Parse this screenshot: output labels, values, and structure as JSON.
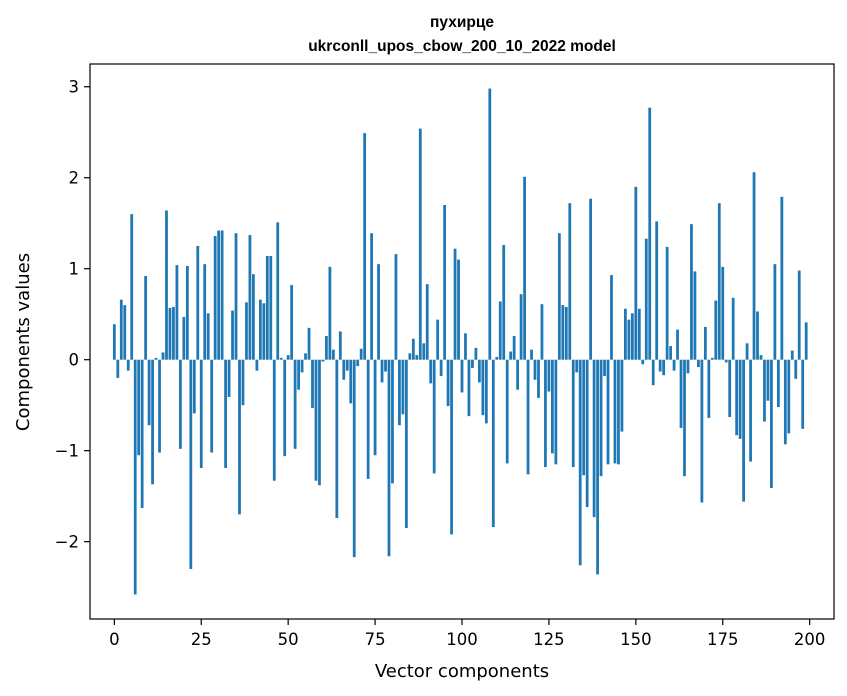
{
  "chart_data": {
    "type": "bar",
    "title": [
      "пухирце",
      "ukrconll_upos_cbow_200_10_2022 model"
    ],
    "xlabel": "Vector components",
    "ylabel": "Components values",
    "xlim": [
      -7,
      207
    ],
    "ylim": [
      -2.85,
      3.25
    ],
    "x_ticks": [
      0,
      25,
      50,
      75,
      100,
      125,
      150,
      175,
      200
    ],
    "x_tick_labels": [
      "0",
      "25",
      "50",
      "75",
      "100",
      "125",
      "150",
      "175",
      "200"
    ],
    "y_ticks": [
      -2,
      -1,
      0,
      1,
      2,
      3
    ],
    "y_tick_labels": [
      "−2",
      "−1",
      "0",
      "1",
      "2",
      "3"
    ],
    "bar_color": "#1f77b4",
    "grid": false,
    "x": [
      0,
      1,
      2,
      3,
      4,
      5,
      6,
      7,
      8,
      9,
      10,
      11,
      12,
      13,
      14,
      15,
      16,
      17,
      18,
      19,
      20,
      21,
      22,
      23,
      24,
      25,
      26,
      27,
      28,
      29,
      30,
      31,
      32,
      33,
      34,
      35,
      36,
      37,
      38,
      39,
      40,
      41,
      42,
      43,
      44,
      45,
      46,
      47,
      48,
      49,
      50,
      51,
      52,
      53,
      54,
      55,
      56,
      57,
      58,
      59,
      60,
      61,
      62,
      63,
      64,
      65,
      66,
      67,
      68,
      69,
      70,
      71,
      72,
      73,
      74,
      75,
      76,
      77,
      78,
      79,
      80,
      81,
      82,
      83,
      84,
      85,
      86,
      87,
      88,
      89,
      90,
      91,
      92,
      93,
      94,
      95,
      96,
      97,
      98,
      99,
      100,
      101,
      102,
      103,
      104,
      105,
      106,
      107,
      108,
      109,
      110,
      111,
      112,
      113,
      114,
      115,
      116,
      117,
      118,
      119,
      120,
      121,
      122,
      123,
      124,
      125,
      126,
      127,
      128,
      129,
      130,
      131,
      132,
      133,
      134,
      135,
      136,
      137,
      138,
      139,
      140,
      141,
      142,
      143,
      144,
      145,
      146,
      147,
      148,
      149,
      150,
      151,
      152,
      153,
      154,
      155,
      156,
      157,
      158,
      159,
      160,
      161,
      162,
      163,
      164,
      165,
      166,
      167,
      168,
      169,
      170,
      171,
      172,
      173,
      174,
      175,
      176,
      177,
      178,
      179,
      180,
      181,
      182,
      183,
      184,
      185,
      186,
      187,
      188,
      189,
      190,
      191,
      192,
      193,
      194,
      195,
      196,
      197,
      198,
      199
    ],
    "values": [
      0.39,
      -0.2,
      0.66,
      0.6,
      -0.12,
      1.6,
      -2.58,
      -1.05,
      -1.63,
      0.92,
      -0.72,
      -1.37,
      0.02,
      -1.02,
      0.08,
      1.64,
      0.57,
      0.58,
      1.04,
      -0.98,
      0.47,
      1.03,
      -2.3,
      -0.59,
      1.25,
      -1.19,
      1.05,
      0.51,
      -1.02,
      1.36,
      1.42,
      1.42,
      -1.19,
      -0.41,
      0.54,
      1.39,
      -1.7,
      -0.5,
      0.63,
      1.37,
      0.94,
      -0.12,
      0.66,
      0.62,
      1.14,
      1.14,
      -1.33,
      1.51,
      0.02,
      -1.06,
      0.05,
      0.82,
      -0.98,
      -0.33,
      -0.14,
      0.07,
      0.35,
      -0.53,
      -1.33,
      -1.38,
      -0.02,
      0.26,
      1.02,
      0.11,
      -1.74,
      0.31,
      -0.22,
      -0.12,
      -0.48,
      -2.17,
      -0.07,
      0.12,
      2.49,
      -1.31,
      1.39,
      -1.05,
      1.05,
      -0.25,
      -0.13,
      -2.16,
      -1.36,
      1.16,
      -0.72,
      -0.6,
      -1.85,
      0.07,
      0.23,
      0.05,
      2.54,
      0.18,
      0.83,
      -0.26,
      -1.25,
      0.44,
      -0.18,
      1.7,
      -0.51,
      -1.92,
      1.22,
      1.1,
      -0.36,
      0.29,
      -0.62,
      -0.09,
      0.13,
      -0.25,
      -0.61,
      -0.7,
      2.98,
      -1.84,
      0.03,
      0.64,
      1.26,
      -1.14,
      0.09,
      0.26,
      -0.33,
      0.72,
      2.01,
      -1.26,
      0.11,
      -0.22,
      -0.42,
      0.61,
      -1.18,
      -0.35,
      -1.03,
      -1.15,
      1.39,
      0.6,
      0.58,
      1.72,
      -1.18,
      -0.14,
      -2.26,
      -1.27,
      -1.62,
      1.77,
      -1.73,
      -2.36,
      -1.28,
      -0.18,
      -1.15,
      0.93,
      -1.14,
      -1.15,
      -0.79,
      0.56,
      0.44,
      0.51,
      1.9,
      0.56,
      -0.05,
      1.33,
      2.77,
      -0.28,
      1.52,
      -0.13,
      -0.17,
      1.24,
      0.15,
      -0.12,
      0.33,
      -0.75,
      -1.28,
      -0.15,
      1.49,
      0.97,
      -0.08,
      -1.57,
      0.36,
      -0.64,
      0.02,
      0.65,
      1.72,
      1.02,
      -0.03,
      -0.63,
      0.68,
      -0.83,
      -0.87,
      -1.56,
      0.18,
      -1.12,
      2.06,
      0.53,
      0.05,
      -0.68,
      -0.45,
      -1.41,
      1.05,
      -0.52,
      1.79,
      -0.93,
      -0.81,
      0.1,
      -0.21,
      0.98,
      -0.76,
      0.41
    ]
  }
}
